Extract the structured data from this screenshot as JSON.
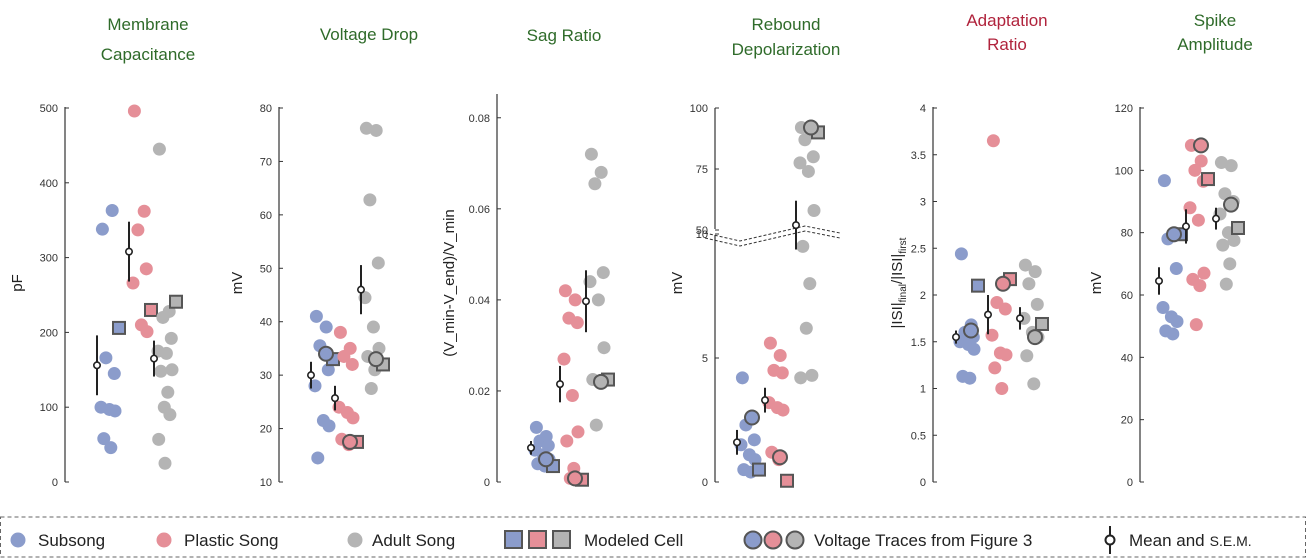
{
  "chart_data": [
    {
      "type": "scatter",
      "title": "Membrane Capacitance",
      "ylabel": "pF",
      "ylim": [
        0,
        500
      ],
      "yticks": [
        "0",
        "100",
        "200",
        "300",
        "400",
        "500"
      ],
      "groups": [
        {
          "name": "Subsong",
          "points": [
            338,
            363,
            166,
            145,
            100,
            97,
            95,
            58,
            46
          ],
          "mean": 156,
          "sem": 40,
          "modeled": 206,
          "trace": null
        },
        {
          "name": "Plastic Song",
          "points": [
            496,
            362,
            337,
            285,
            266,
            210,
            201
          ],
          "mean": 308,
          "sem": 40,
          "modeled": 230,
          "trace": null
        },
        {
          "name": "Adult Song",
          "points": [
            445,
            228,
            220,
            192,
            175,
            172,
            150,
            148,
            120,
            100,
            90,
            57,
            25
          ],
          "mean": 165,
          "sem": 24,
          "modeled": 241,
          "trace": null
        }
      ]
    },
    {
      "type": "scatter",
      "title": "Voltage Drop",
      "ylabel": "mV",
      "ylim": [
        10,
        80
      ],
      "yticks": [
        "10",
        "20",
        "30",
        "40",
        "50",
        "60",
        "70",
        "80"
      ],
      "groups": [
        {
          "name": "Subsong",
          "points": [
            41,
            39,
            35.5,
            31,
            28,
            21.5,
            20.5,
            14.5
          ],
          "mean": 30,
          "sem": 2.5,
          "modeled": 33,
          "trace": 34
        },
        {
          "name": "Plastic Song",
          "points": [
            38,
            35,
            33.5,
            32,
            24,
            23,
            22,
            18,
            17
          ],
          "mean": 25.7,
          "sem": 2.3,
          "modeled": 17.5,
          "trace": 17.5
        },
        {
          "name": "Adult Song",
          "points": [
            76.2,
            75.8,
            62.8,
            51,
            44.5,
            39,
            35,
            33.5,
            31,
            27.5
          ],
          "mean": 46,
          "sem": 4.6,
          "modeled": 32,
          "trace": 33
        }
      ]
    },
    {
      "type": "scatter",
      "title": "Sag Ratio",
      "ylabel": "(V_min-V_end)/V_min",
      "ylim": [
        0,
        0.085
      ],
      "yticks": [
        "0",
        "0.02",
        "0.04",
        "0.06",
        "0.08"
      ],
      "groups": [
        {
          "name": "Subsong",
          "points": [
            0.012,
            0.01,
            0.009,
            0.008,
            0.007,
            0.006,
            0.005,
            0.004,
            0.0035
          ],
          "mean": 0.0075,
          "sem": 0.0015,
          "modeled": 0.0035,
          "trace": 0.005
        },
        {
          "name": "Plastic Song",
          "points": [
            0.042,
            0.04,
            0.036,
            0.035,
            0.027,
            0.019,
            0.011,
            0.009,
            0.003,
            0.0008
          ],
          "mean": 0.0215,
          "sem": 0.004,
          "modeled": 0.0005,
          "trace": 0.0008
        },
        {
          "name": "Adult Song",
          "points": [
            0.072,
            0.068,
            0.0655,
            0.046,
            0.044,
            0.04,
            0.0295,
            0.0225,
            0.022,
            0.0125
          ],
          "mean": 0.0397,
          "sem": 0.0068,
          "modeled": 0.0225,
          "trace": 0.022
        }
      ]
    },
    {
      "type": "scatter",
      "title": "Rebound Depolarization",
      "ylabel": "mV",
      "ylim": [
        0,
        100
      ],
      "yticks": [
        "0",
        "5",
        "10",
        "50",
        "75",
        "100"
      ],
      "axis_break": [
        10,
        50
      ],
      "groups": [
        {
          "name": "Subsong",
          "points": [
            4.2,
            2.6,
            2.3,
            1.7,
            1.5,
            1.1,
            0.9,
            0.5,
            0.4
          ],
          "mean": 1.6,
          "sem": 0.5,
          "modeled": 0.5,
          "trace": 2.6
        },
        {
          "name": "Plastic Song",
          "points": [
            5.6,
            5.1,
            4.5,
            4.4,
            3.2,
            3.0,
            2.9,
            1.2,
            0.9
          ],
          "mean": 3.3,
          "sem": 0.5,
          "modeled": 0.05,
          "trace": 1.0
        },
        {
          "name": "Adult Song",
          "points": [
            92,
            90.5,
            87,
            80,
            77.5,
            74,
            58,
            9.5,
            8,
            6.2,
            4.3,
            4.2
          ],
          "mean": 52,
          "sem": 10,
          "modeled": 90,
          "trace": 92
        }
      ]
    },
    {
      "type": "scatter",
      "title": "Adaptation Ratio",
      "title_color": "#b0233c",
      "ylabel": "|ISI|_final/|ISI|_first",
      "ylim": [
        0,
        4
      ],
      "yticks": [
        "0",
        "0.5",
        "1",
        "1.5",
        "2",
        "2.5",
        "3",
        "3.5",
        "4"
      ],
      "groups": [
        {
          "name": "Subsong",
          "points": [
            2.44,
            1.68,
            1.6,
            1.55,
            1.5,
            1.47,
            1.42,
            1.13,
            1.11
          ],
          "mean": 1.55,
          "sem": 0.07,
          "modeled": 2.1,
          "trace": 1.62
        },
        {
          "name": "Plastic Song",
          "points": [
            3.65,
            2.13,
            1.92,
            1.85,
            1.57,
            1.38,
            1.36,
            1.22,
            1.0
          ],
          "mean": 1.79,
          "sem": 0.21,
          "modeled": 2.17,
          "trace": 2.12
        },
        {
          "name": "Adult Song",
          "points": [
            2.32,
            2.25,
            2.12,
            1.9,
            1.75,
            1.6,
            1.55,
            1.35,
            1.05
          ],
          "mean": 1.75,
          "sem": 0.12,
          "modeled": 1.69,
          "trace": 1.55
        }
      ]
    },
    {
      "type": "scatter",
      "title": "Spike Amplitude",
      "ylabel": "mV",
      "ylim": [
        0,
        120
      ],
      "yticks": [
        "0",
        "20",
        "40",
        "60",
        "80",
        "100",
        "120"
      ],
      "groups": [
        {
          "name": "Subsong",
          "points": [
            96.7,
            79,
            78,
            68.5,
            56,
            53,
            51.5,
            48.5,
            47.5
          ],
          "mean": 64.5,
          "sem": 4.4,
          "modeled": 79.5,
          "trace": 79.5
        },
        {
          "name": "Plastic Song",
          "points": [
            108,
            103,
            100,
            96.5,
            88,
            84,
            67,
            65,
            63,
            50.5
          ],
          "mean": 82,
          "sem": 5.5,
          "modeled": 97.2,
          "trace": 108
        },
        {
          "name": "Adult Song",
          "points": [
            102.5,
            101.5,
            92.5,
            90,
            86,
            80,
            77.5,
            76,
            70,
            63.5
          ],
          "mean": 84.5,
          "sem": 3.5,
          "modeled": 81.5,
          "trace": 89
        }
      ]
    }
  ],
  "colors": {
    "Subsong": "#8b9ccb",
    "Plastic Song": "#e58f98",
    "Adult Song": "#b4b4b4",
    "title_default": "#2f6b2a",
    "marker_edge": "#555555"
  },
  "legend": {
    "items": [
      "Subsong",
      "Plastic Song",
      "Adult Song",
      "Modeled Cell",
      "Voltage Traces from Figure 3",
      "Mean and",
      "S.E.M."
    ]
  }
}
